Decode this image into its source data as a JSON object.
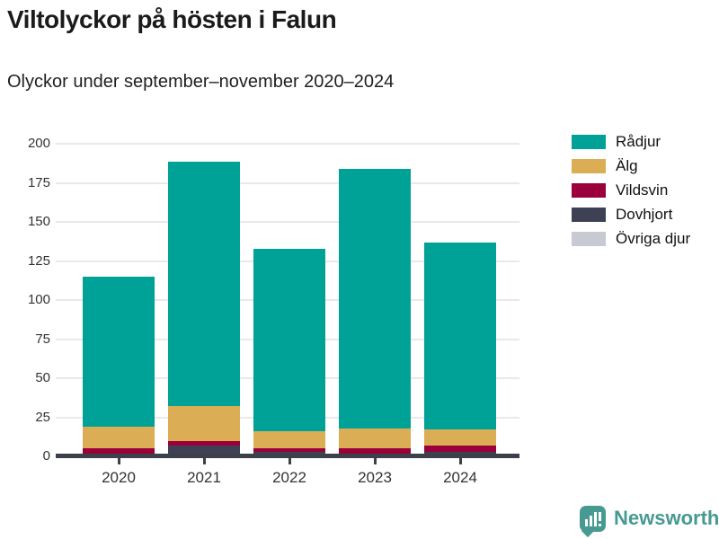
{
  "header": {
    "title": "Viltolyckor på hösten i Falun",
    "subtitle": "Olyckor under september–november 2020–2024"
  },
  "chart_data": {
    "type": "bar",
    "stacked": true,
    "title": "Viltolyckor på hösten i Falun",
    "subtitle": "Olyckor under september–november 2020–2024",
    "categories": [
      "2020",
      "2021",
      "2022",
      "2023",
      "2024"
    ],
    "series": [
      {
        "name": "Rådjur",
        "color": "#00a196",
        "values": [
          96,
          157,
          117,
          166,
          120
        ]
      },
      {
        "name": "Älg",
        "color": "#dbad54",
        "values": [
          14,
          22,
          11,
          13,
          10
        ]
      },
      {
        "name": "Vildsvin",
        "color": "#9b003c",
        "values": [
          3,
          3,
          2,
          5,
          4
        ]
      },
      {
        "name": "Dovhjort",
        "color": "#3e4153",
        "values": [
          2,
          7,
          3,
          0,
          3
        ]
      },
      {
        "name": "Övriga djur",
        "color": "#c8cad3",
        "values": [
          0,
          0,
          0,
          0,
          0
        ]
      }
    ],
    "totals": [
      115,
      189,
      133,
      184,
      137
    ],
    "xlabel": "",
    "ylabel": "",
    "ylim": [
      0,
      200
    ],
    "y_ticks": [
      0,
      25,
      50,
      75,
      100,
      125,
      150,
      175,
      200
    ],
    "grid": true,
    "legend_position": "right"
  },
  "colors": {
    "axis": "#3c4049",
    "gridline": "#e9e9eb",
    "tick_text": "#333333",
    "title_text": "#1b1b1b",
    "brand_teal": "#479a91"
  },
  "footer": {
    "brand": "Newsworthy",
    "logo_icon": "bar-chart-exclamation-bubble-icon"
  }
}
